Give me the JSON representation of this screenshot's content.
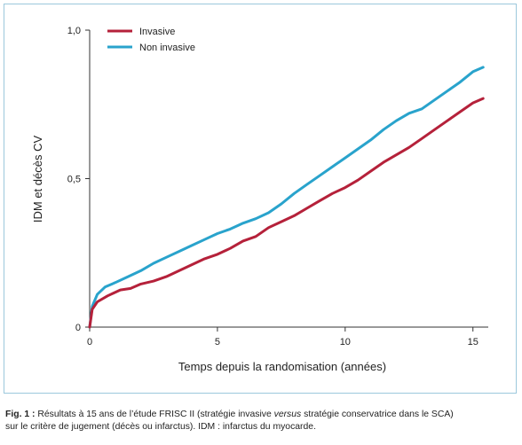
{
  "chart_data": {
    "type": "line",
    "xlabel": "Temps depuis la randomisation (années)",
    "ylabel": "IDM et décès CV",
    "xlim": [
      0,
      15.6
    ],
    "ylim": [
      0,
      1.0
    ],
    "x_ticks": [
      0,
      5,
      10,
      15
    ],
    "x_tick_labels": [
      "0",
      "5",
      "10",
      "15"
    ],
    "y_ticks": [
      0,
      0.5,
      1.0
    ],
    "y_tick_labels": [
      "0",
      "0,5",
      "1,0"
    ],
    "grid": false,
    "legend_position": "top-left",
    "series": [
      {
        "name": "Invasive",
        "color": "#b5213a",
        "x": [
          0,
          0.1,
          0.3,
          0.7,
          1.2,
          1.6,
          2.0,
          2.5,
          3.0,
          3.5,
          4.0,
          4.5,
          5.0,
          5.5,
          6.0,
          6.5,
          7.0,
          7.5,
          8.0,
          8.5,
          9.0,
          9.5,
          10.0,
          10.5,
          11.0,
          11.5,
          12.0,
          12.5,
          13.0,
          13.5,
          14.0,
          14.5,
          15.0,
          15.4
        ],
        "y": [
          0,
          0.06,
          0.085,
          0.105,
          0.125,
          0.13,
          0.145,
          0.155,
          0.17,
          0.19,
          0.21,
          0.23,
          0.245,
          0.265,
          0.29,
          0.305,
          0.335,
          0.355,
          0.375,
          0.4,
          0.425,
          0.45,
          0.47,
          0.495,
          0.525,
          0.555,
          0.58,
          0.605,
          0.635,
          0.665,
          0.695,
          0.725,
          0.755,
          0.77
        ]
      },
      {
        "name": "Non invasive",
        "color": "#29a3cc",
        "x": [
          0,
          0.1,
          0.3,
          0.6,
          1.0,
          1.5,
          2.0,
          2.5,
          3.0,
          3.5,
          4.0,
          4.5,
          5.0,
          5.5,
          6.0,
          6.5,
          7.0,
          7.5,
          8.0,
          8.5,
          9.0,
          9.5,
          10.0,
          10.5,
          11.0,
          11.5,
          12.0,
          12.5,
          13.0,
          13.5,
          14.0,
          14.5,
          15.0,
          15.4
        ],
        "y": [
          0,
          0.07,
          0.11,
          0.135,
          0.15,
          0.17,
          0.19,
          0.215,
          0.235,
          0.255,
          0.275,
          0.295,
          0.315,
          0.33,
          0.35,
          0.365,
          0.385,
          0.415,
          0.45,
          0.48,
          0.51,
          0.54,
          0.57,
          0.6,
          0.63,
          0.665,
          0.695,
          0.72,
          0.735,
          0.765,
          0.795,
          0.825,
          0.86,
          0.875
        ]
      }
    ]
  },
  "caption": {
    "label": "Fig. 1 :",
    "text_before_italic": " Résultats à 15 ans de l’étude FRISC II (stratégie invasive ",
    "italic": "versus",
    "text_after_italic": " stratégie conservatrice dans le SCA)",
    "line2": "sur le critère de jugement (décès ou infarctus). IDM : infarctus du myocarde."
  }
}
